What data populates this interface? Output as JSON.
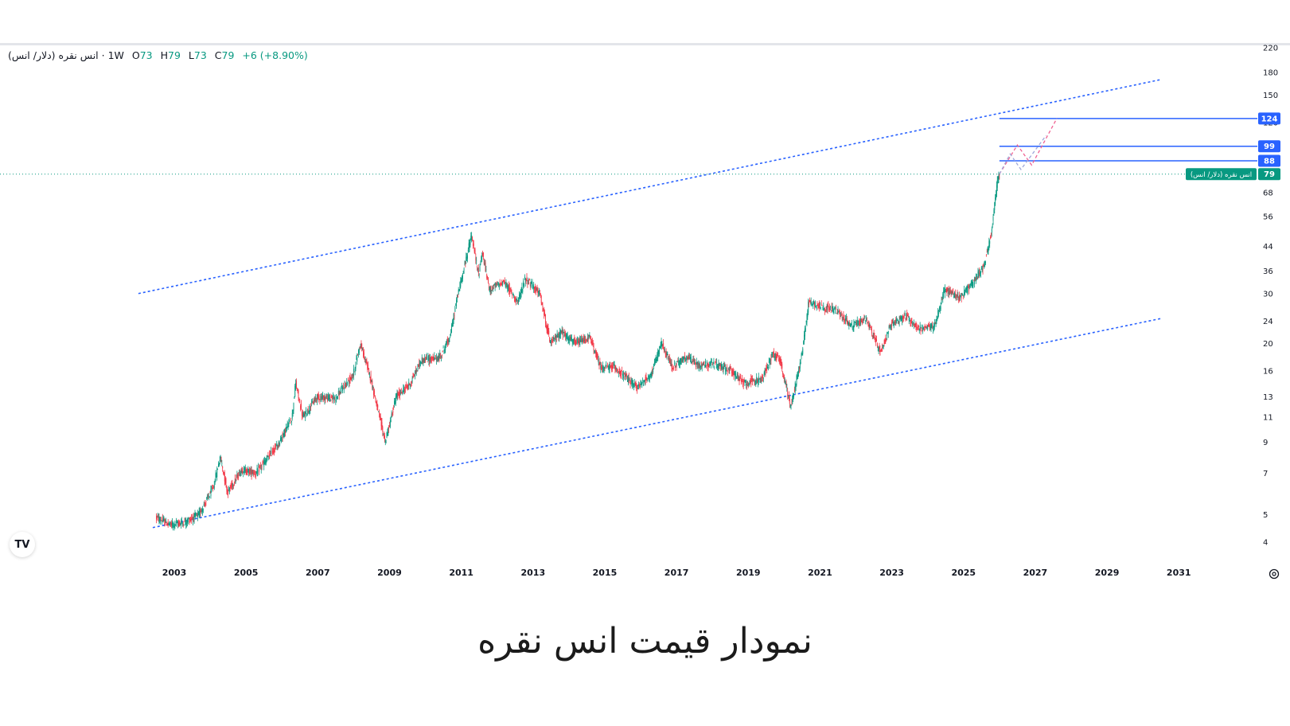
{
  "legend": {
    "symbol": "انس نقره (دلار/ انس)",
    "interval": "1W",
    "open_label": "O",
    "open": "73",
    "high_label": "H",
    "high": "79",
    "low_label": "L",
    "low": "73",
    "close_label": "C",
    "close": "79",
    "change": "+6 (+8.90%)"
  },
  "caption": "نمودار قیمت انس نقره",
  "logo_text": "TV",
  "colors": {
    "up": "#089981",
    "down": "#f23645",
    "channel": "#2962ff",
    "level": "#2962ff",
    "last_price": "#089981",
    "projection": "#f06292"
  },
  "chart_data": {
    "type": "candlestick",
    "title": "",
    "xlabel": "",
    "ylabel": "",
    "y_scale": "log",
    "ylim": [
      4,
      220
    ],
    "x_range": [
      2002.0,
      2031.5
    ],
    "y_ticks": [
      "220",
      "180",
      "150",
      "120",
      "68",
      "56",
      "44",
      "36",
      "30",
      "24",
      "20",
      "16",
      "13",
      "11",
      "9",
      "7",
      "5",
      "4"
    ],
    "x_ticks": [
      "2003",
      "2005",
      "2007",
      "2009",
      "2011",
      "2013",
      "2015",
      "2017",
      "2019",
      "2021",
      "2023",
      "2025",
      "2027",
      "2029",
      "2031"
    ],
    "price_path": [
      [
        2002.5,
        4.9
      ],
      [
        2002.9,
        4.6
      ],
      [
        2003.3,
        4.7
      ],
      [
        2003.7,
        5.0
      ],
      [
        2004.1,
        6.2
      ],
      [
        2004.3,
        8.0
      ],
      [
        2004.5,
        6.0
      ],
      [
        2004.9,
        7.2
      ],
      [
        2005.3,
        7.0
      ],
      [
        2005.9,
        8.8
      ],
      [
        2006.3,
        11.0
      ],
      [
        2006.4,
        14.5
      ],
      [
        2006.6,
        11.0
      ],
      [
        2007.0,
        13.0
      ],
      [
        2007.5,
        12.8
      ],
      [
        2008.0,
        15.5
      ],
      [
        2008.2,
        20.0
      ],
      [
        2008.5,
        15.0
      ],
      [
        2008.7,
        11.5
      ],
      [
        2008.9,
        9.0
      ],
      [
        2009.2,
        13.0
      ],
      [
        2009.6,
        14.5
      ],
      [
        2009.9,
        17.5
      ],
      [
        2010.4,
        17.8
      ],
      [
        2010.7,
        21.0
      ],
      [
        2010.9,
        29.0
      ],
      [
        2011.3,
        48.0
      ],
      [
        2011.5,
        35.0
      ],
      [
        2011.6,
        42.0
      ],
      [
        2011.8,
        31.0
      ],
      [
        2012.2,
        33.0
      ],
      [
        2012.6,
        28.0
      ],
      [
        2012.8,
        34.0
      ],
      [
        2013.2,
        30.0
      ],
      [
        2013.5,
        20.0
      ],
      [
        2013.8,
        22.0
      ],
      [
        2014.2,
        20.0
      ],
      [
        2014.6,
        21.0
      ],
      [
        2014.9,
        16.5
      ],
      [
        2015.3,
        16.5
      ],
      [
        2015.9,
        14.0
      ],
      [
        2016.3,
        15.5
      ],
      [
        2016.6,
        20.0
      ],
      [
        2016.9,
        16.5
      ],
      [
        2017.3,
        18.0
      ],
      [
        2017.6,
        16.8
      ],
      [
        2018.0,
        17.0
      ],
      [
        2018.5,
        16.2
      ],
      [
        2018.9,
        14.5
      ],
      [
        2019.4,
        15.0
      ],
      [
        2019.7,
        18.5
      ],
      [
        2019.9,
        17.5
      ],
      [
        2020.2,
        12.0
      ],
      [
        2020.5,
        18.0
      ],
      [
        2020.7,
        28.0
      ],
      [
        2021.1,
        27.0
      ],
      [
        2021.5,
        26.0
      ],
      [
        2021.9,
        23.0
      ],
      [
        2022.3,
        24.5
      ],
      [
        2022.7,
        18.5
      ],
      [
        2023.0,
        23.5
      ],
      [
        2023.4,
        25.0
      ],
      [
        2023.8,
        22.5
      ],
      [
        2024.2,
        23.0
      ],
      [
        2024.5,
        31.0
      ],
      [
        2024.9,
        29.0
      ],
      [
        2025.3,
        33.0
      ],
      [
        2025.6,
        38.0
      ],
      [
        2025.8,
        50.0
      ],
      [
        2025.95,
        72.0
      ],
      [
        2026.0,
        79.0
      ]
    ],
    "last_price": 79,
    "last_price_label": "انس نقره (دلار/ انس)",
    "levels": [
      {
        "value": 124,
        "label": "124"
      },
      {
        "value": 99,
        "label": "99"
      },
      {
        "value": 88,
        "label": "88"
      }
    ],
    "channel": {
      "upper": [
        [
          2002.0,
          30
        ],
        [
          2030.5,
          170
        ]
      ],
      "lower": [
        [
          2002.4,
          4.5
        ],
        [
          2030.5,
          24.5
        ]
      ]
    },
    "projection_paths": [
      [
        [
          2026.0,
          79
        ],
        [
          2026.5,
          100
        ],
        [
          2026.9,
          85
        ],
        [
          2027.6,
          124
        ]
      ],
      [
        [
          2026.0,
          79
        ],
        [
          2026.3,
          93
        ],
        [
          2026.6,
          82
        ],
        [
          2027.3,
          108
        ]
      ]
    ]
  }
}
